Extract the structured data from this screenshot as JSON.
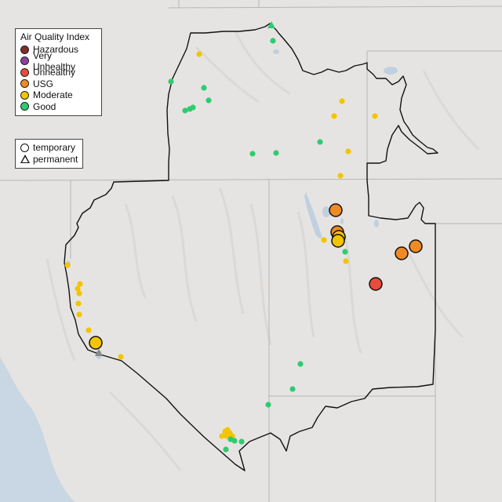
{
  "legend": {
    "title": "Air Quality Index",
    "categories": [
      {
        "label": "Hazardous",
        "color": "#7e2f2a"
      },
      {
        "label": "Very Unhealthy",
        "color": "#8f3fa0"
      },
      {
        "label": "Unhealthy",
        "color": "#e84c3d"
      },
      {
        "label": "USG",
        "color": "#f08a24"
      },
      {
        "label": "Moderate",
        "color": "#f2c500"
      },
      {
        "label": "Good",
        "color": "#2ecc71"
      }
    ]
  },
  "monitor_legend": {
    "temporary": "temporary",
    "permanent": "permanent"
  }
}
